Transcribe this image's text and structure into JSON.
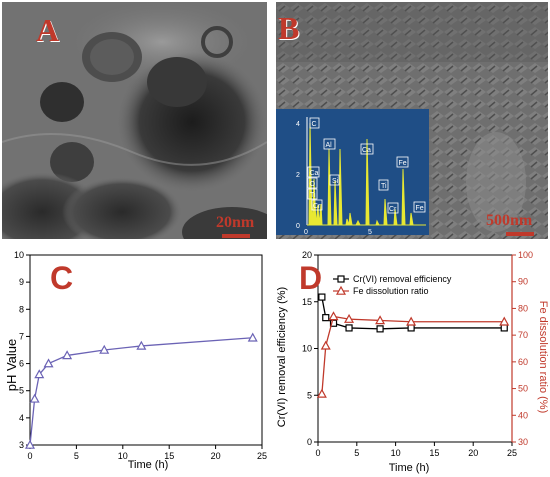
{
  "panels": {
    "a": {
      "letter": "A",
      "scale_bar": "20nm"
    },
    "b": {
      "letter": "B",
      "scale_bar": "500nm",
      "eds_inset": {
        "y_ticks": [
          "4",
          "2",
          "0"
        ],
        "x_ticks": [
          "0",
          "5"
        ],
        "element_labels": [
          "C",
          "O",
          "Ca",
          "Ti",
          "Cr",
          "Al",
          "Si",
          "Ca",
          "Ti",
          "Cr",
          "Fe",
          "Fe"
        ],
        "colors": {
          "background": "#1f4e86",
          "spectrum": "#e8e832",
          "label_border": "#ffffff"
        }
      }
    },
    "c": {
      "letter": "C"
    },
    "d": {
      "letter": "D"
    }
  },
  "chart_data": [
    {
      "panel": "C",
      "type": "line",
      "xlabel": "Time (h)",
      "ylabel": "pH Value",
      "xlim": [
        0,
        25
      ],
      "ylim": [
        3,
        10
      ],
      "x_ticks": [
        "0",
        "5",
        "10",
        "15",
        "20",
        "25"
      ],
      "y_ticks": [
        "3",
        "4",
        "5",
        "6",
        "7",
        "8",
        "9",
        "10"
      ],
      "series": [
        {
          "x": [
            0,
            0.5,
            1,
            2,
            4,
            8,
            12,
            24
          ],
          "y": [
            3.0,
            4.7,
            5.6,
            6.0,
            6.3,
            6.5,
            6.65,
            6.95
          ],
          "color": "#6b63b5",
          "marker": "triangle"
        }
      ]
    },
    {
      "panel": "D",
      "type": "line",
      "xlabel": "Time (h)",
      "ylabel": "Cr(VI) removal efficiency (%)",
      "y2label": "Fe dissolution ratio (%)",
      "xlim": [
        0,
        25
      ],
      "ylim": [
        0,
        20
      ],
      "y2lim": [
        30,
        100
      ],
      "x_ticks": [
        "0",
        "5",
        "10",
        "15",
        "20",
        "25"
      ],
      "y_ticks": [
        "0",
        "5",
        "10",
        "15",
        "20"
      ],
      "y2_ticks": [
        "30",
        "40",
        "50",
        "60",
        "70",
        "80",
        "90",
        "100"
      ],
      "legend_position": "top-right",
      "series": [
        {
          "name": "Cr(VI) removal efficiency",
          "axis": "left",
          "color": "#000000",
          "marker": "square",
          "x": [
            0.5,
            1,
            2,
            4,
            8,
            12,
            24
          ],
          "y": [
            15.5,
            13.3,
            12.7,
            12.2,
            12.1,
            12.2,
            12.2
          ]
        },
        {
          "name": "Fe dissolution ratio",
          "axis": "right",
          "color": "#c0392b",
          "marker": "triangle",
          "x": [
            0.5,
            1,
            2,
            4,
            8,
            12,
            24
          ],
          "y": [
            48,
            66,
            77,
            76,
            75.5,
            75,
            75
          ]
        }
      ]
    }
  ]
}
